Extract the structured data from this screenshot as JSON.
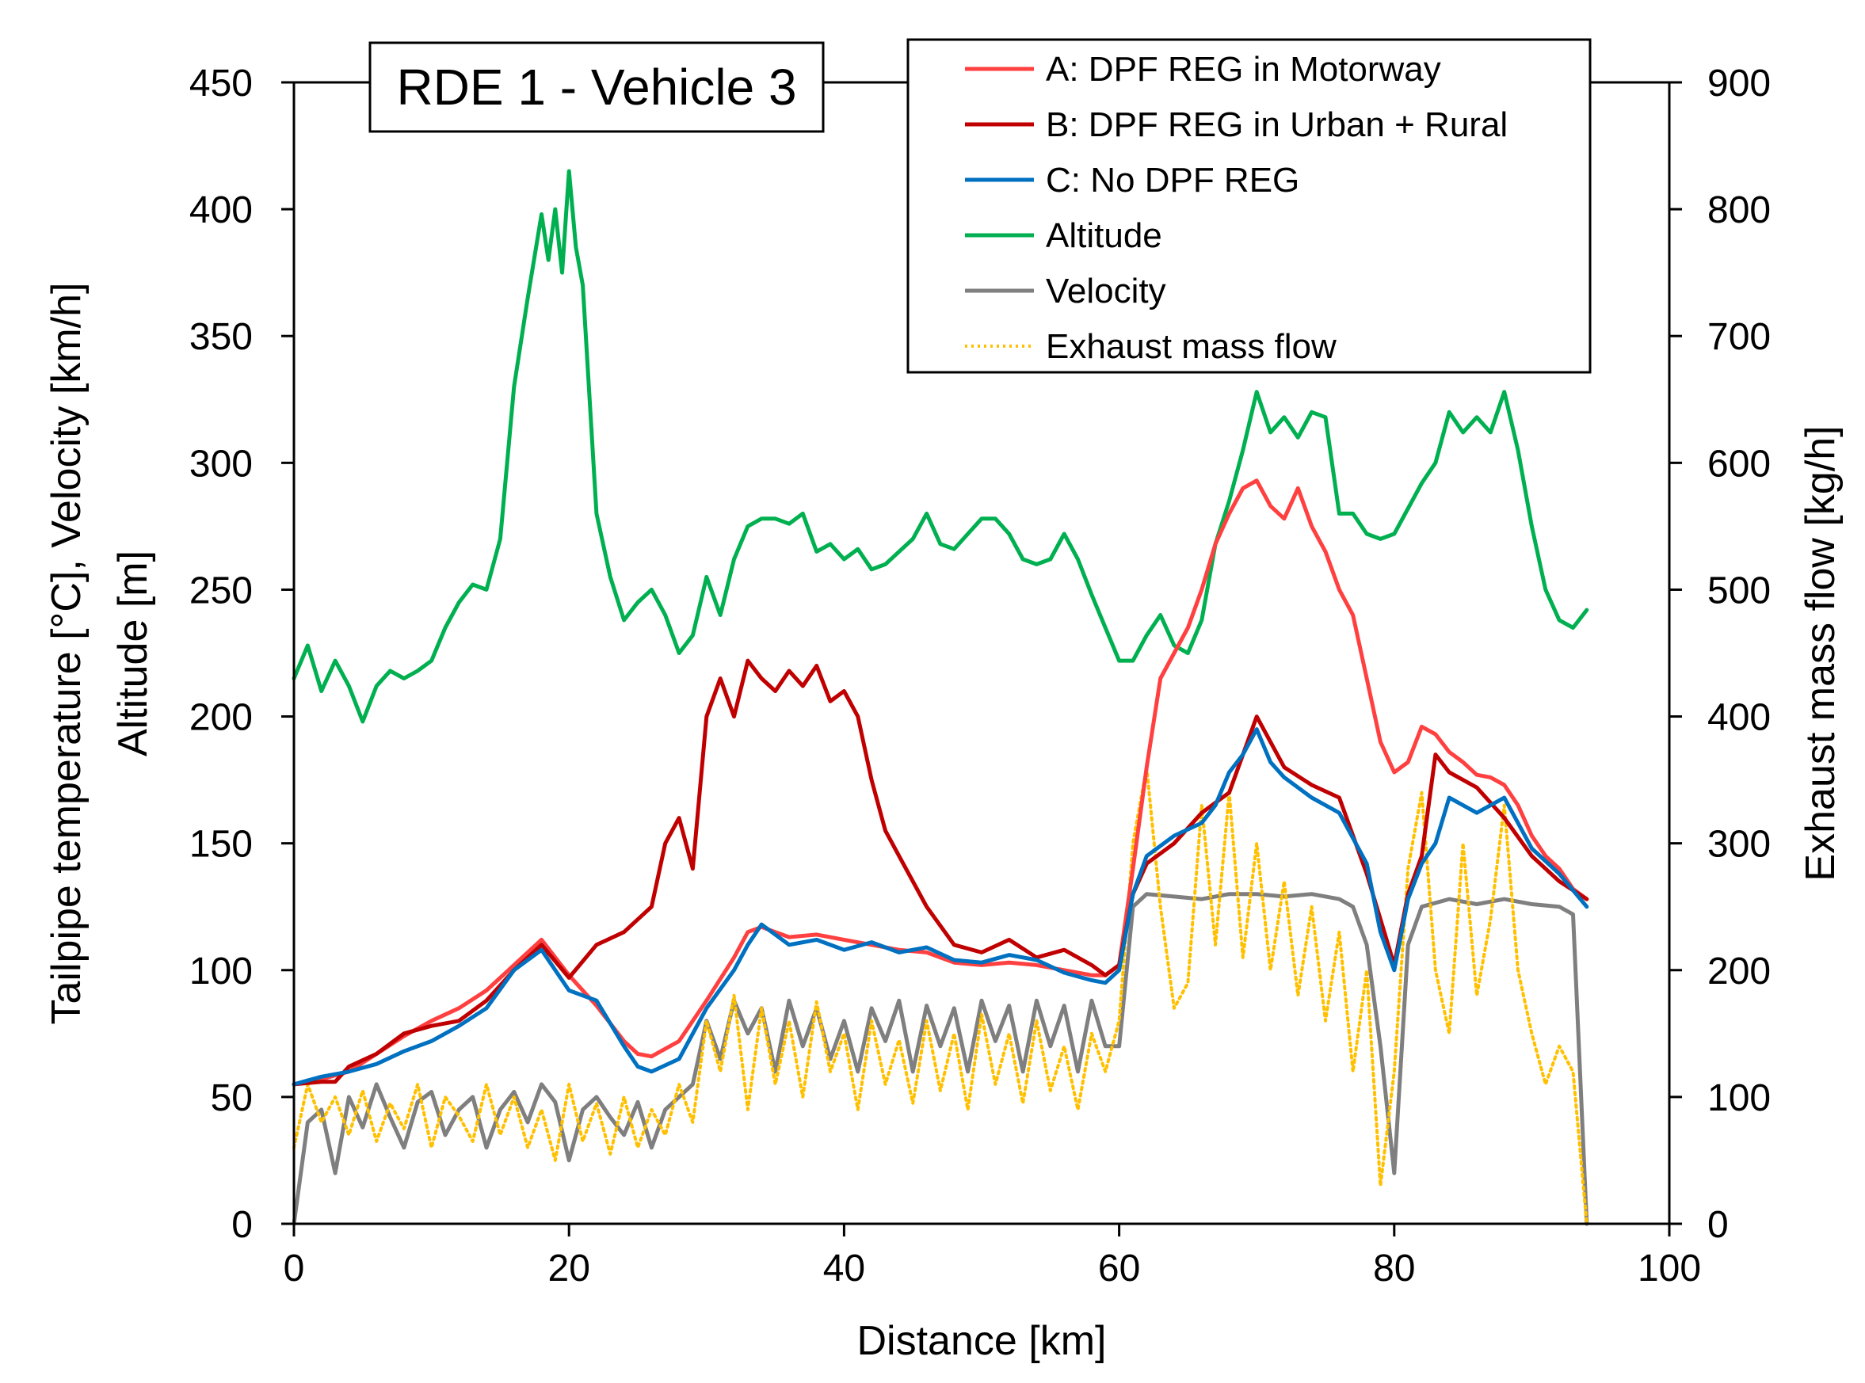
{
  "chart_data": {
    "type": "line",
    "title": "RDE 1 - Vehicle 3",
    "xlabel": "Distance [km]",
    "ylabel_lines": [
      "Tailpipe temperature [°C], Velocity [km/h]",
      "Altitude [m]"
    ],
    "y2label": "Exhaust mass flow [kg/h]",
    "xlim": [
      0,
      100
    ],
    "ylim": [
      0,
      450
    ],
    "y2lim": [
      0,
      900
    ],
    "x_ticks": [
      0,
      20,
      40,
      60,
      80,
      100
    ],
    "y_ticks": [
      0,
      50,
      100,
      150,
      200,
      250,
      300,
      350,
      400,
      450
    ],
    "y2_ticks": [
      0,
      100,
      200,
      300,
      400,
      500,
      600,
      700,
      800,
      900
    ],
    "legend_position": "top-right",
    "series": [
      {
        "name": "A: DPF REG in Motorway",
        "color": "#ff4040",
        "dash": "solid",
        "axis": "left",
        "x": [
          0,
          2,
          4,
          6,
          8,
          10,
          12,
          14,
          16,
          18,
          20,
          22,
          24,
          25,
          26,
          28,
          30,
          32,
          33,
          34,
          36,
          38,
          40,
          42,
          44,
          46,
          48,
          50,
          52,
          54,
          56,
          58,
          59,
          60,
          61,
          62,
          63,
          64,
          65,
          66,
          67,
          68,
          69,
          70,
          71,
          72,
          73,
          74,
          75,
          76,
          77,
          78,
          79,
          80,
          81,
          82,
          83,
          84,
          85,
          86,
          87,
          88,
          89,
          90,
          91,
          92,
          93,
          94
        ],
        "values": [
          55,
          57,
          60,
          67,
          74,
          80,
          85,
          92,
          102,
          112,
          98,
          86,
          72,
          67,
          66,
          72,
          88,
          105,
          115,
          117,
          113,
          114,
          112,
          110,
          108,
          107,
          103,
          102,
          103,
          102,
          100,
          98,
          98,
          102,
          140,
          180,
          215,
          225,
          235,
          250,
          268,
          280,
          290,
          293,
          283,
          278,
          290,
          275,
          265,
          250,
          240,
          215,
          190,
          178,
          182,
          196,
          193,
          186,
          182,
          177,
          176,
          173,
          165,
          153,
          145,
          140,
          132,
          128
        ]
      },
      {
        "name": "B: DPF REG in Urban + Rural",
        "color": "#c00000",
        "dash": "solid",
        "axis": "left",
        "x": [
          0,
          2,
          3,
          4,
          6,
          8,
          10,
          12,
          14,
          16,
          18,
          20,
          22,
          24,
          26,
          27,
          28,
          29,
          30,
          31,
          32,
          33,
          34,
          35,
          36,
          37,
          38,
          39,
          40,
          41,
          42,
          43,
          44,
          46,
          48,
          50,
          52,
          54,
          56,
          58,
          59,
          60,
          61,
          62,
          64,
          66,
          68,
          70,
          72,
          74,
          76,
          78,
          80,
          81,
          82,
          83,
          84,
          86,
          88,
          90,
          92,
          94
        ],
        "values": [
          55,
          56,
          56,
          62,
          67,
          75,
          78,
          80,
          88,
          100,
          110,
          97,
          110,
          115,
          125,
          150,
          160,
          140,
          200,
          215,
          200,
          222,
          215,
          210,
          218,
          212,
          220,
          206,
          210,
          200,
          175,
          155,
          145,
          125,
          110,
          107,
          112,
          105,
          108,
          102,
          98,
          102,
          130,
          142,
          150,
          162,
          170,
          200,
          180,
          173,
          168,
          138,
          102,
          130,
          145,
          185,
          178,
          172,
          160,
          145,
          135,
          128
        ]
      },
      {
        "name": "C: No DPF REG",
        "color": "#0070c0",
        "dash": "solid",
        "axis": "left",
        "x": [
          0,
          2,
          4,
          6,
          8,
          10,
          12,
          14,
          16,
          18,
          20,
          22,
          24,
          25,
          26,
          28,
          30,
          32,
          33,
          34,
          36,
          38,
          40,
          42,
          44,
          46,
          48,
          50,
          52,
          54,
          56,
          58,
          59,
          60,
          61,
          62,
          64,
          66,
          67,
          68,
          69,
          70,
          71,
          72,
          74,
          76,
          78,
          79,
          80,
          81,
          82,
          83,
          84,
          86,
          88,
          90,
          92,
          94
        ],
        "values": [
          55,
          58,
          60,
          63,
          68,
          72,
          78,
          85,
          100,
          108,
          92,
          88,
          70,
          62,
          60,
          65,
          85,
          100,
          110,
          118,
          110,
          112,
          108,
          111,
          107,
          109,
          104,
          103,
          106,
          104,
          99,
          96,
          95,
          100,
          130,
          145,
          153,
          158,
          165,
          178,
          185,
          195,
          182,
          176,
          168,
          162,
          142,
          115,
          100,
          128,
          142,
          150,
          168,
          162,
          168,
          148,
          138,
          125
        ]
      },
      {
        "name": "Altitude",
        "color": "#00b050",
        "dash": "solid",
        "axis": "left",
        "x": [
          0,
          1,
          2,
          3,
          4,
          5,
          6,
          7,
          8,
          9,
          10,
          11,
          12,
          13,
          14,
          15,
          16,
          17,
          18,
          18.5,
          19,
          19.5,
          20,
          20.5,
          21,
          22,
          23,
          24,
          25,
          26,
          27,
          28,
          29,
          30,
          31,
          32,
          33,
          34,
          35,
          36,
          37,
          38,
          39,
          40,
          41,
          42,
          43,
          44,
          45,
          46,
          47,
          48,
          49,
          50,
          51,
          52,
          53,
          54,
          55,
          56,
          57,
          58,
          59,
          60,
          61,
          62,
          63,
          64,
          65,
          66,
          67,
          68,
          69,
          70,
          71,
          72,
          73,
          74,
          75,
          76,
          77,
          78,
          79,
          80,
          81,
          82,
          83,
          84,
          85,
          86,
          87,
          88,
          89,
          90,
          91,
          92,
          93,
          94
        ],
        "values": [
          215,
          228,
          210,
          222,
          212,
          198,
          212,
          218,
          215,
          218,
          222,
          235,
          245,
          252,
          250,
          270,
          330,
          365,
          398,
          380,
          400,
          375,
          415,
          385,
          370,
          280,
          255,
          238,
          245,
          250,
          240,
          225,
          232,
          255,
          240,
          262,
          275,
          278,
          278,
          276,
          280,
          265,
          268,
          262,
          266,
          258,
          260,
          265,
          270,
          280,
          268,
          266,
          272,
          278,
          278,
          272,
          262,
          260,
          262,
          272,
          262,
          248,
          235,
          222,
          222,
          232,
          240,
          228,
          225,
          238,
          268,
          285,
          305,
          328,
          312,
          318,
          310,
          320,
          318,
          280,
          280,
          272,
          270,
          272,
          282,
          292,
          300,
          320,
          312,
          318,
          312,
          328,
          305,
          275,
          250,
          238,
          235,
          242
        ]
      },
      {
        "name": "Velocity",
        "color": "#7f7f7f",
        "dash": "solid",
        "axis": "left",
        "x": [
          0,
          1,
          2,
          3,
          4,
          5,
          6,
          7,
          8,
          9,
          10,
          11,
          12,
          13,
          14,
          15,
          16,
          17,
          18,
          19,
          20,
          21,
          22,
          23,
          24,
          25,
          26,
          27,
          28,
          29,
          30,
          31,
          32,
          33,
          34,
          35,
          36,
          37,
          38,
          39,
          40,
          41,
          42,
          43,
          44,
          45,
          46,
          47,
          48,
          49,
          50,
          51,
          52,
          53,
          54,
          55,
          56,
          57,
          58,
          59,
          60,
          61,
          62,
          64,
          66,
          68,
          70,
          72,
          74,
          76,
          77,
          78,
          79,
          80,
          81,
          82,
          84,
          86,
          88,
          90,
          92,
          93,
          94
        ],
        "values": [
          0,
          40,
          45,
          20,
          50,
          38,
          55,
          42,
          30,
          48,
          52,
          35,
          45,
          50,
          30,
          45,
          52,
          40,
          55,
          48,
          25,
          45,
          50,
          42,
          35,
          48,
          30,
          45,
          50,
          55,
          80,
          65,
          88,
          75,
          85,
          60,
          88,
          70,
          85,
          65,
          80,
          60,
          85,
          72,
          88,
          60,
          86,
          70,
          85,
          60,
          88,
          72,
          86,
          60,
          88,
          70,
          86,
          60,
          88,
          70,
          70,
          125,
          130,
          129,
          128,
          130,
          130,
          129,
          130,
          128,
          125,
          110,
          70,
          20,
          110,
          125,
          128,
          126,
          128,
          126,
          125,
          122,
          0
        ]
      },
      {
        "name": "Exhaust mass flow",
        "color": "#ffc000",
        "dash": "dotted",
        "axis": "right",
        "x": [
          0,
          1,
          2,
          3,
          4,
          5,
          6,
          7,
          8,
          9,
          10,
          11,
          12,
          13,
          14,
          15,
          16,
          17,
          18,
          19,
          20,
          21,
          22,
          23,
          24,
          25,
          26,
          27,
          28,
          29,
          30,
          31,
          32,
          33,
          34,
          35,
          36,
          37,
          38,
          39,
          40,
          41,
          42,
          43,
          44,
          45,
          46,
          47,
          48,
          49,
          50,
          51,
          52,
          53,
          54,
          55,
          56,
          57,
          58,
          59,
          60,
          61,
          62,
          63,
          64,
          65,
          66,
          67,
          68,
          69,
          70,
          71,
          72,
          73,
          74,
          75,
          76,
          77,
          78,
          79,
          80,
          81,
          82,
          83,
          84,
          85,
          86,
          87,
          88,
          89,
          90,
          91,
          92,
          93,
          94
        ],
        "values": [
          60,
          110,
          80,
          100,
          70,
          105,
          65,
          95,
          75,
          110,
          60,
          100,
          85,
          65,
          110,
          70,
          100,
          60,
          90,
          50,
          110,
          65,
          95,
          55,
          100,
          60,
          90,
          70,
          110,
          80,
          160,
          120,
          180,
          90,
          170,
          110,
          160,
          100,
          175,
          120,
          150,
          90,
          160,
          110,
          145,
          95,
          160,
          105,
          150,
          90,
          165,
          110,
          150,
          95,
          160,
          105,
          140,
          90,
          150,
          120,
          160,
          300,
          360,
          250,
          170,
          190,
          330,
          220,
          340,
          210,
          300,
          200,
          270,
          180,
          250,
          160,
          230,
          120,
          200,
          30,
          120,
          280,
          340,
          200,
          150,
          300,
          180,
          240,
          330,
          200,
          150,
          110,
          140,
          120,
          0
        ]
      }
    ]
  }
}
